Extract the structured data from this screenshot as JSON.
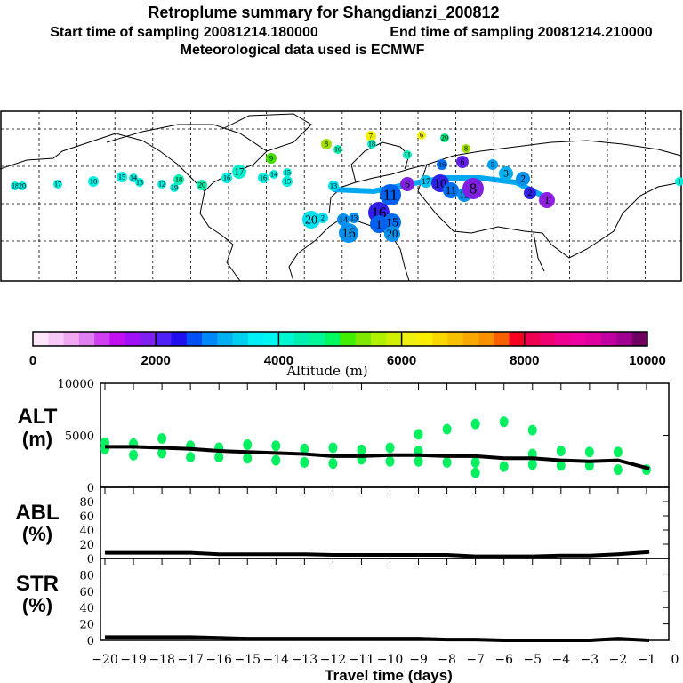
{
  "header": {
    "title": "Retroplume summary for Shangdianzi_200812",
    "start_label": "Start time of sampling 20081214.180000",
    "end_label": "End time of sampling 20081214.210000",
    "met_label": "Meteorological data used is ECMWF"
  },
  "map": {
    "markers": [
      {
        "label": "18",
        "color": "#00f0e0"
      },
      {
        "label": "20",
        "color": "#00f0e0"
      },
      {
        "label": "17",
        "color": "#00f0e0"
      },
      {
        "label": "18",
        "color": "#00f0e0"
      },
      {
        "label": "15",
        "color": "#00f0e0"
      },
      {
        "label": "14",
        "color": "#00f0e0"
      },
      {
        "label": "13",
        "color": "#00f0e0"
      },
      {
        "label": "12",
        "color": "#00f0e0"
      },
      {
        "label": "18",
        "color": "#00f0b0"
      },
      {
        "label": "19",
        "color": "#00f0e0"
      },
      {
        "label": "20",
        "color": "#00f0b0"
      },
      {
        "label": "16",
        "color": "#00f0e0"
      },
      {
        "label": "17",
        "color": "#00f0d0"
      },
      {
        "label": "16",
        "color": "#00f0e0"
      },
      {
        "label": "14",
        "color": "#00f0e0"
      },
      {
        "label": "15",
        "color": "#00f0e0"
      },
      {
        "label": "15",
        "color": "#00f0e0"
      },
      {
        "label": "9",
        "color": "#40e000"
      },
      {
        "label": "8",
        "color": "#a0e000"
      },
      {
        "label": "10",
        "color": "#00f0b0"
      },
      {
        "label": "7",
        "color": "#f0f000"
      },
      {
        "label": "18",
        "color": "#00f0d0"
      },
      {
        "label": "6",
        "color": "#f0f000"
      },
      {
        "label": "20",
        "color": "#00e880"
      },
      {
        "label": "8",
        "color": "#a0e000"
      },
      {
        "label": "11",
        "color": "#00f0c0"
      },
      {
        "label": "13",
        "color": "#00e0f0"
      },
      {
        "label": "11",
        "color": "#0060f0"
      },
      {
        "label": "6",
        "color": "#8020e0"
      },
      {
        "label": "17",
        "color": "#00c0f0"
      },
      {
        "label": "10",
        "color": "#3020e8"
      },
      {
        "label": "11",
        "color": "#0070f0"
      },
      {
        "label": "12",
        "color": "#0090f0"
      },
      {
        "label": "8",
        "color": "#8020e0"
      },
      {
        "label": "5",
        "color": "#00a0f0"
      },
      {
        "label": "6",
        "color": "#6020e8"
      },
      {
        "label": "16",
        "color": "#0070f0"
      },
      {
        "label": "3",
        "color": "#00b0f0"
      },
      {
        "label": "2",
        "color": "#0090f0"
      },
      {
        "label": "2",
        "color": "#3020e8"
      },
      {
        "label": "1",
        "color": "#9020e0"
      },
      {
        "label": "16",
        "color": "#3020e8"
      },
      {
        "label": "15",
        "color": "#0070f0"
      },
      {
        "label": "1",
        "color": "#0060f0"
      },
      {
        "label": "20",
        "color": "#0090f0"
      },
      {
        "label": "20",
        "color": "#00e0f0"
      },
      {
        "label": "2",
        "color": "#00e0f0"
      },
      {
        "label": "14",
        "color": "#0090f0"
      },
      {
        "label": "13",
        "color": "#0090f0"
      },
      {
        "label": "16",
        "color": "#0090f0"
      },
      {
        "label": "1",
        "color": "#00f0e0"
      }
    ]
  },
  "colorbar": {
    "colors": [
      "#fde6fa",
      "#f8c8f8",
      "#f0a8f0",
      "#e080f0",
      "#d040f0",
      "#c010f0",
      "#a010f8",
      "#8020f0",
      "#5020f8",
      "#2010f0",
      "#0050f8",
      "#0088f8",
      "#00b0f0",
      "#00d0f0",
      "#00f0f8",
      "#00f8f0",
      "#00f8d0",
      "#00f0b0",
      "#00f898",
      "#00f860",
      "#40f000",
      "#80e800",
      "#b0f000",
      "#d0f000",
      "#f0f010",
      "#f8f000",
      "#f8d800",
      "#f8c000",
      "#f8a800",
      "#f89000",
      "#f86000",
      "#f80020",
      "#f00050",
      "#f00070",
      "#f00090",
      "#f000a0",
      "#e000a0",
      "#c000a0",
      "#a00090",
      "#700060"
    ],
    "tick_labels": [
      "0",
      "2000",
      "4000",
      "6000",
      "8000",
      "10000"
    ],
    "label": "Altitude (m)"
  },
  "chart_data": [
    {
      "type": "line",
      "name": "ALT",
      "ylabel_top": "ALT",
      "ylabel_bottom": "(m)",
      "ylim": [
        0,
        10000
      ],
      "ytick_labels": [
        "10000",
        "5000",
        "0"
      ],
      "x": [
        -20,
        -19,
        -18,
        -17,
        -16,
        -15,
        -14,
        -13,
        -12,
        -11,
        -10,
        -9,
        -8,
        -7,
        -6,
        -5,
        -4,
        -3,
        -2,
        -1
      ],
      "median": [
        3900,
        3900,
        3800,
        3700,
        3500,
        3400,
        3300,
        3200,
        3000,
        3000,
        3100,
        3100,
        3000,
        3000,
        2800,
        2800,
        2600,
        2500,
        2600,
        1800
      ],
      "scatter_color": "#00f060",
      "scatter": [
        [
          -20,
          4300
        ],
        [
          -20,
          3700
        ],
        [
          -19,
          4200
        ],
        [
          -19,
          3100
        ],
        [
          -18,
          4700
        ],
        [
          -18,
          3300
        ],
        [
          -17,
          4000
        ],
        [
          -17,
          2900
        ],
        [
          -16,
          3800
        ],
        [
          -16,
          2900
        ],
        [
          -15,
          4100
        ],
        [
          -15,
          2800
        ],
        [
          -14,
          4000
        ],
        [
          -14,
          2600
        ],
        [
          -13,
          3700
        ],
        [
          -13,
          2400
        ],
        [
          -12,
          3800
        ],
        [
          -12,
          2300
        ],
        [
          -11,
          3600
        ],
        [
          -11,
          2700
        ],
        [
          -10,
          3800
        ],
        [
          -10,
          2500
        ],
        [
          -9,
          5100
        ],
        [
          -9,
          3500
        ],
        [
          -9,
          2500
        ],
        [
          -8,
          5600
        ],
        [
          -8,
          2400
        ],
        [
          -7,
          6100
        ],
        [
          -7,
          2400
        ],
        [
          -7,
          1400
        ],
        [
          -6,
          6300
        ],
        [
          -6,
          2000
        ],
        [
          -5,
          5500
        ],
        [
          -5,
          3200
        ],
        [
          -5,
          2200
        ],
        [
          -4,
          3500
        ],
        [
          -4,
          2100
        ],
        [
          -3,
          3400
        ],
        [
          -3,
          2100
        ],
        [
          -2,
          3400
        ],
        [
          -2,
          1700
        ],
        [
          -1,
          1700
        ]
      ]
    },
    {
      "type": "line",
      "name": "ABL",
      "ylabel_top": "ABL",
      "ylabel_bottom": "(%)",
      "ylim": [
        0,
        100
      ],
      "ytick_labels": [
        "80",
        "60",
        "40",
        "20",
        "0"
      ],
      "x": [
        -20,
        -19,
        -18,
        -17,
        -16,
        -15,
        -14,
        -13,
        -12,
        -11,
        -10,
        -9,
        -8,
        -7,
        -6,
        -5,
        -4,
        -3,
        -2,
        -1
      ],
      "values": [
        8,
        8,
        8,
        8,
        6,
        6,
        6,
        6,
        5,
        5,
        5,
        5,
        5,
        3,
        3,
        3,
        4,
        4,
        6,
        9
      ]
    },
    {
      "type": "line",
      "name": "STR",
      "ylabel_top": "STR",
      "ylabel_bottom": "(%)",
      "ylim": [
        0,
        100
      ],
      "ytick_labels": [
        "80",
        "60",
        "40",
        "20",
        "0"
      ],
      "x": [
        -20,
        -19,
        -18,
        -17,
        -16,
        -15,
        -14,
        -13,
        -12,
        -11,
        -10,
        -9,
        -8,
        -7,
        -6,
        -5,
        -4,
        -3,
        -2,
        -1
      ],
      "values": [
        4,
        4,
        4,
        4,
        3,
        2,
        2,
        2,
        2,
        2,
        2,
        2,
        1,
        1,
        0,
        0,
        0,
        0,
        2,
        0
      ],
      "xlabel": "Travel time (days)",
      "xtick_labels": [
        "−20",
        "−19",
        "−18",
        "−17",
        "−16",
        "−15",
        "−14",
        "−13",
        "−12",
        "−11",
        "−10",
        "−9",
        "−8",
        "−7",
        "−6",
        "−5",
        "−4",
        "−3",
        "−2",
        "−1",
        "0"
      ],
      "xlim": [
        -20,
        0
      ]
    }
  ]
}
